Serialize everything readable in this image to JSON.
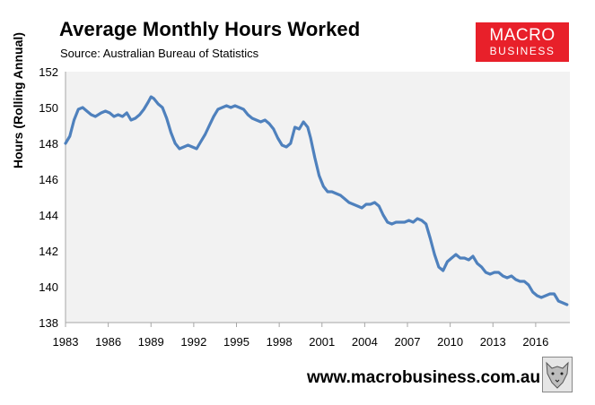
{
  "header": {
    "title": "Average Monthly Hours Worked",
    "subtitle": "Source: Australian Bureau of Statistics"
  },
  "logo": {
    "line1": "MACRO",
    "line2": "BUSINESS"
  },
  "footer": {
    "url": "www.macrobusiness.com.au",
    "icon": "wolf-icon"
  },
  "colors": {
    "line": "#4f81bd",
    "plot_bg": "#f2f2f2",
    "logo_bg": "#e8202a"
  },
  "chart_data": {
    "type": "line",
    "title": "Average Monthly Hours Worked",
    "ylabel": "Hours (Rolling Annual)",
    "xlabel": "",
    "xlim": [
      1983.0,
      2018.4
    ],
    "ylim": [
      138,
      152
    ],
    "yticks": [
      138,
      140,
      142,
      144,
      146,
      148,
      150,
      152
    ],
    "xticks": [
      1983,
      1986,
      1989,
      1992,
      1995,
      1998,
      2001,
      2004,
      2007,
      2010,
      2013,
      2016
    ],
    "grid": false,
    "legend": "none",
    "series": [
      {
        "x": [
          1983.0,
          1983.3,
          1983.6,
          1983.9,
          1984.2,
          1984.5,
          1984.8,
          1985.1,
          1985.5,
          1985.8,
          1986.1,
          1986.4,
          1986.7,
          1987.0,
          1987.3,
          1987.6,
          1987.9,
          1988.2,
          1988.5,
          1988.8,
          1989.0,
          1989.2,
          1989.5,
          1989.8,
          1990.1,
          1990.4,
          1990.7,
          1991.0,
          1991.3,
          1991.6,
          1991.9,
          1992.2,
          1992.5,
          1992.8,
          1993.1,
          1993.4,
          1993.7,
          1994.0,
          1994.3,
          1994.6,
          1994.9,
          1995.2,
          1995.5,
          1995.8,
          1996.1,
          1996.4,
          1996.7,
          1997.0,
          1997.3,
          1997.6,
          1997.9,
          1998.2,
          1998.5,
          1998.8,
          1999.1,
          1999.4,
          1999.7,
          2000.0,
          2000.2,
          2000.5,
          2000.8,
          2001.1,
          2001.4,
          2001.7,
          2002.0,
          2002.3,
          2002.6,
          2002.9,
          2003.2,
          2003.5,
          2003.8,
          2004.1,
          2004.4,
          2004.7,
          2005.0,
          2005.3,
          2005.6,
          2005.9,
          2006.2,
          2006.5,
          2006.8,
          2007.1,
          2007.4,
          2007.7,
          2008.0,
          2008.3,
          2008.6,
          2008.9,
          2009.2,
          2009.5,
          2009.8,
          2010.1,
          2010.4,
          2010.7,
          2011.0,
          2011.3,
          2011.6,
          2011.9,
          2012.2,
          2012.5,
          2012.8,
          2013.1,
          2013.4,
          2013.7,
          2014.0,
          2014.3,
          2014.6,
          2014.9,
          2015.2,
          2015.5,
          2015.8,
          2016.1,
          2016.4,
          2016.7,
          2017.0,
          2017.3,
          2017.6,
          2017.9,
          2018.2
        ],
        "y": [
          148.0,
          148.4,
          149.3,
          149.9,
          150.0,
          149.8,
          149.6,
          149.5,
          149.7,
          149.8,
          149.7,
          149.5,
          149.6,
          149.5,
          149.7,
          149.3,
          149.4,
          149.6,
          149.9,
          150.3,
          150.6,
          150.5,
          150.2,
          150.0,
          149.4,
          148.6,
          148.0,
          147.7,
          147.8,
          147.9,
          147.8,
          147.7,
          148.1,
          148.5,
          149.0,
          149.5,
          149.9,
          150.0,
          150.1,
          150.0,
          150.1,
          150.0,
          149.9,
          149.6,
          149.4,
          149.3,
          149.2,
          149.3,
          149.1,
          148.8,
          148.3,
          147.9,
          147.8,
          148.0,
          148.9,
          148.8,
          149.2,
          148.9,
          148.3,
          147.2,
          146.2,
          145.6,
          145.3,
          145.3,
          145.2,
          145.1,
          144.9,
          144.7,
          144.6,
          144.5,
          144.4,
          144.6,
          144.6,
          144.7,
          144.5,
          144.0,
          143.6,
          143.5,
          143.6,
          143.6,
          143.6,
          143.7,
          143.6,
          143.8,
          143.7,
          143.5,
          142.7,
          141.8,
          141.1,
          140.9,
          141.4,
          141.6,
          141.8,
          141.6,
          141.6,
          141.5,
          141.7,
          141.3,
          141.1,
          140.8,
          140.7,
          140.8,
          140.8,
          140.6,
          140.5,
          140.6,
          140.4,
          140.3,
          140.3,
          140.1,
          139.7,
          139.5,
          139.4,
          139.5,
          139.6,
          139.6,
          139.2,
          139.1,
          139.0
        ]
      }
    ]
  }
}
